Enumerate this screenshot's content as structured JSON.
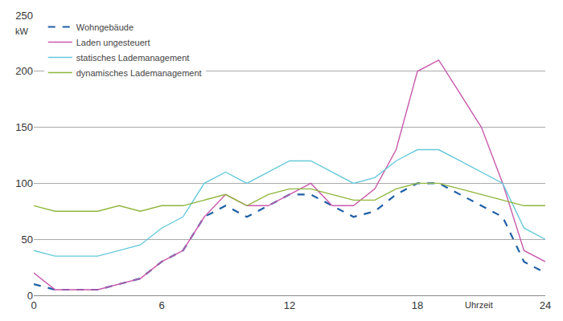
{
  "chart_data": {
    "type": "line",
    "x_label": "Uhrzeit",
    "y_label": "kW",
    "x": [
      0,
      1,
      2,
      3,
      4,
      5,
      6,
      7,
      8,
      9,
      10,
      11,
      12,
      13,
      14,
      15,
      16,
      17,
      18,
      19,
      20,
      21,
      22,
      23,
      24
    ],
    "series": [
      {
        "name": "Wohngebäude",
        "color": "#1f5fa6",
        "line_style": "dash",
        "values": [
          10,
          5,
          5,
          5,
          10,
          15,
          30,
          40,
          70,
          80,
          70,
          80,
          90,
          90,
          80,
          70,
          75,
          90,
          100,
          100,
          90,
          80,
          70,
          30,
          20
        ]
      },
      {
        "name": "Laden ungesteuert",
        "color": "#c85aac",
        "line_style": "solid",
        "values": [
          20,
          5,
          5,
          5,
          10,
          15,
          30,
          40,
          70,
          90,
          80,
          80,
          90,
          100,
          80,
          80,
          95,
          130,
          200,
          210,
          180,
          150,
          100,
          40,
          30
        ]
      },
      {
        "name": "statisches Lademanagement",
        "color": "#66c9dc",
        "line_style": "solid",
        "values": [
          40,
          35,
          35,
          35,
          40,
          45,
          60,
          70,
          100,
          110,
          100,
          110,
          120,
          120,
          110,
          100,
          105,
          120,
          130,
          130,
          120,
          110,
          100,
          60,
          50
        ]
      },
      {
        "name": "dynamisches Lademanagement",
        "color": "#8fb63c",
        "line_style": "solid",
        "values": [
          80,
          75,
          75,
          75,
          80,
          75,
          80,
          80,
          85,
          90,
          80,
          90,
          95,
          95,
          90,
          85,
          85,
          95,
          100,
          100,
          95,
          90,
          85,
          80,
          80
        ]
      }
    ],
    "xlim": [
      0,
      24
    ],
    "xticks": [
      0,
      6,
      12,
      18,
      24
    ],
    "ylim": [
      0,
      250
    ],
    "yticks": [
      0,
      50,
      100,
      150,
      200,
      250
    ],
    "grid": true,
    "legend": "top-left"
  }
}
